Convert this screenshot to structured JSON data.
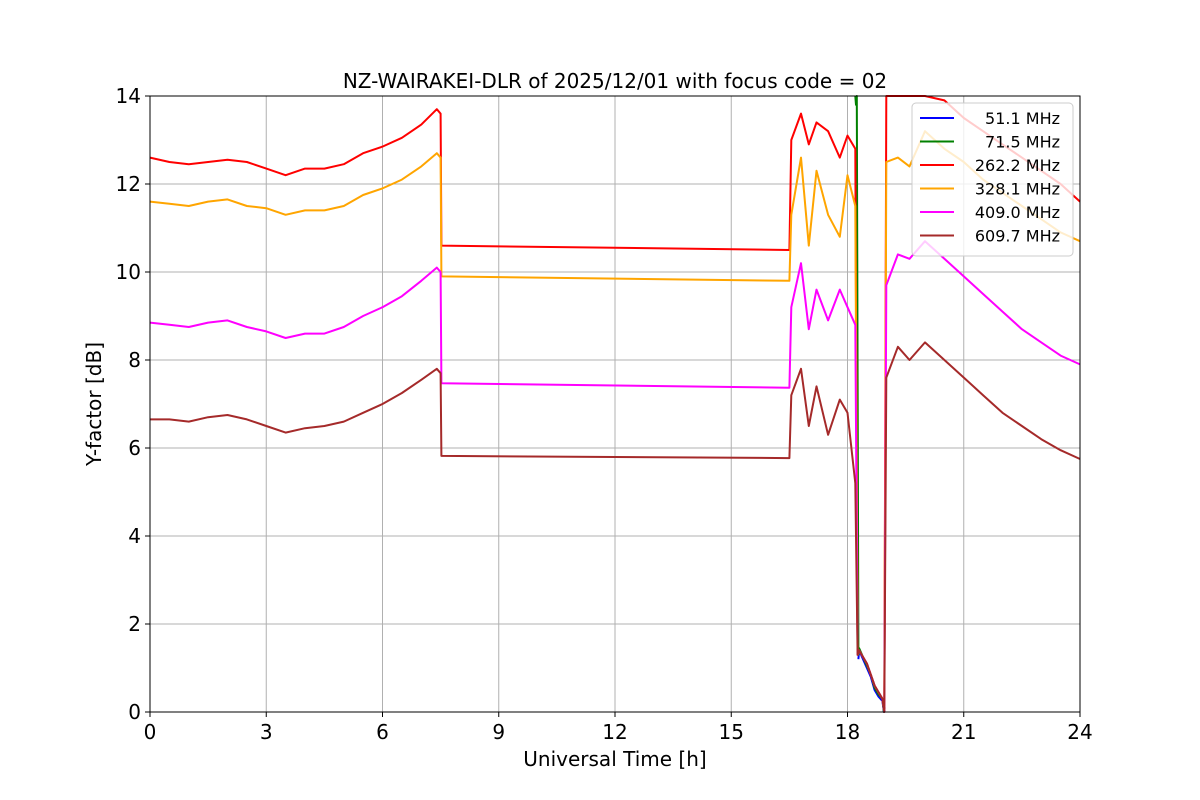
{
  "chart_data": {
    "type": "line",
    "title": "NZ-WAIRAKEI-DLR of 2025/12/01 with focus code = 02",
    "xlabel": "Universal Time [h]",
    "ylabel": "Y-factor [dB]",
    "xlim": [
      0,
      24
    ],
    "ylim": [
      0,
      14
    ],
    "xticks": [
      0,
      3,
      6,
      9,
      12,
      15,
      18,
      21,
      24
    ],
    "yticks": [
      0,
      2,
      4,
      6,
      8,
      10,
      12,
      14
    ],
    "grid": true,
    "legend_position": "top-right",
    "series": [
      {
        "name": "51.1 MHz",
        "color": "#0000ff",
        "x": [
          18.28,
          18.3,
          18.4,
          18.5,
          18.6,
          18.7,
          18.8,
          18.9,
          18.94,
          18.96
        ],
        "y": [
          1.2,
          1.4,
          1.2,
          1.0,
          0.8,
          0.5,
          0.35,
          0.25,
          0.0,
          0.05
        ]
      },
      {
        "name": "71.5 MHz",
        "color": "#008000",
        "x": [
          18.2,
          18.22,
          18.24,
          18.28,
          18.3,
          18.4,
          18.5,
          18.6,
          18.7,
          18.8,
          18.9,
          18.94,
          18.96
        ],
        "y": [
          14.0,
          13.8,
          14.0,
          1.3,
          1.45,
          1.25,
          1.05,
          0.85,
          0.55,
          0.4,
          0.3,
          0.0,
          0.1
        ]
      },
      {
        "name": "262.2 MHz",
        "color": "#ff0000",
        "x": [
          0,
          0.5,
          1,
          1.5,
          2,
          2.5,
          3,
          3.5,
          4,
          4.5,
          5,
          5.5,
          6,
          6.5,
          7,
          7.4,
          7.5,
          7.52,
          16.5,
          16.55,
          16.8,
          17.0,
          17.2,
          17.5,
          17.8,
          18.0,
          18.2,
          18.26,
          18.3,
          18.5,
          18.7,
          18.9,
          18.95,
          19.0,
          19.3,
          19.6,
          20.0,
          20.5,
          21.0,
          21.5,
          22.0,
          22.5,
          23.0,
          23.5,
          24.0
        ],
        "y": [
          12.6,
          12.5,
          12.45,
          12.5,
          12.55,
          12.5,
          12.35,
          12.2,
          12.35,
          12.35,
          12.45,
          12.7,
          12.85,
          13.05,
          13.35,
          13.7,
          13.6,
          10.6,
          10.5,
          13.0,
          13.6,
          12.9,
          13.4,
          13.2,
          12.6,
          13.1,
          12.8,
          1.3,
          1.4,
          1.1,
          0.6,
          0.3,
          0.0,
          14.0,
          14.0,
          14.0,
          14.0,
          13.9,
          13.5,
          13.2,
          12.9,
          12.6,
          12.3,
          12.0,
          11.6
        ]
      },
      {
        "name": "328.1 MHz",
        "color": "#ffa500",
        "x": [
          0,
          0.5,
          1,
          1.5,
          2,
          2.5,
          3,
          3.5,
          4,
          4.5,
          5,
          5.5,
          6,
          6.5,
          7,
          7.4,
          7.5,
          7.52,
          16.5,
          16.55,
          16.8,
          17.0,
          17.2,
          17.5,
          17.8,
          18.0,
          18.2,
          18.26,
          18.3,
          18.5,
          18.7,
          18.9,
          18.95,
          19.0,
          19.3,
          19.6,
          20.0,
          20.5,
          21.0,
          21.5,
          22.0,
          22.5,
          23.0,
          23.5,
          24.0
        ],
        "y": [
          11.6,
          11.55,
          11.5,
          11.6,
          11.65,
          11.5,
          11.45,
          11.3,
          11.4,
          11.4,
          11.5,
          11.75,
          11.9,
          12.1,
          12.4,
          12.7,
          12.6,
          9.9,
          9.8,
          11.3,
          12.6,
          10.6,
          12.3,
          11.3,
          10.8,
          12.2,
          11.5,
          1.3,
          1.4,
          1.1,
          0.6,
          0.3,
          0.0,
          12.5,
          12.6,
          12.4,
          13.2,
          12.8,
          12.5,
          12.1,
          11.8,
          11.5,
          11.2,
          10.9,
          10.7
        ]
      },
      {
        "name": "409.0 MHz",
        "color": "#ff00ff",
        "x": [
          0,
          0.5,
          1,
          1.5,
          2,
          2.5,
          3,
          3.5,
          4,
          4.5,
          5,
          5.5,
          6,
          6.5,
          7,
          7.4,
          7.5,
          7.52,
          16.5,
          16.55,
          16.8,
          17.0,
          17.2,
          17.5,
          17.8,
          18.0,
          18.2,
          18.26,
          18.3,
          18.5,
          18.7,
          18.9,
          18.95,
          19.0,
          19.3,
          19.6,
          20.0,
          20.5,
          21.0,
          21.5,
          22.0,
          22.5,
          23.0,
          23.5,
          24.0
        ],
        "y": [
          8.85,
          8.8,
          8.75,
          8.85,
          8.9,
          8.75,
          8.65,
          8.5,
          8.6,
          8.6,
          8.75,
          9.0,
          9.2,
          9.45,
          9.8,
          10.1,
          10.0,
          7.47,
          7.37,
          9.2,
          10.2,
          8.7,
          9.6,
          8.9,
          9.6,
          9.2,
          8.8,
          1.3,
          1.4,
          1.1,
          0.6,
          0.3,
          0.0,
          9.7,
          10.4,
          10.3,
          10.7,
          10.3,
          9.9,
          9.5,
          9.1,
          8.7,
          8.4,
          8.1,
          7.9
        ]
      },
      {
        "name": "609.7 MHz",
        "color": "#a52a2a",
        "x": [
          0,
          0.5,
          1,
          1.5,
          2,
          2.5,
          3,
          3.5,
          4,
          4.5,
          5,
          5.5,
          6,
          6.5,
          7,
          7.4,
          7.5,
          7.52,
          16.5,
          16.55,
          16.8,
          17.0,
          17.2,
          17.5,
          17.8,
          18.0,
          18.2,
          18.26,
          18.3,
          18.5,
          18.7,
          18.9,
          18.95,
          19.0,
          19.3,
          19.6,
          20.0,
          20.5,
          21.0,
          21.5,
          22.0,
          22.5,
          23.0,
          23.5,
          24.0
        ],
        "y": [
          6.65,
          6.65,
          6.6,
          6.7,
          6.75,
          6.65,
          6.5,
          6.35,
          6.45,
          6.5,
          6.6,
          6.8,
          7.0,
          7.25,
          7.55,
          7.8,
          7.7,
          5.82,
          5.77,
          7.2,
          7.8,
          6.5,
          7.4,
          6.3,
          7.1,
          6.8,
          5.2,
          1.3,
          1.4,
          1.1,
          0.6,
          0.3,
          0.0,
          7.6,
          8.3,
          8.0,
          8.4,
          8.0,
          7.6,
          7.2,
          6.8,
          6.5,
          6.2,
          5.95,
          5.75
        ]
      }
    ]
  }
}
